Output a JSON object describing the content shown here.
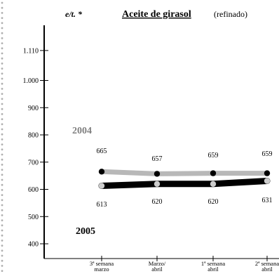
{
  "unit_label": "e/t. *",
  "title": "Aceite de girasol",
  "subtitle": "(refinado)",
  "chart_data": {
    "type": "line",
    "categories": [
      "3ª semana marzo",
      "Marzo/ abril",
      "1ª semana abril",
      "2ª semana abril"
    ],
    "category_lines": [
      [
        "3ª semana",
        "marzo"
      ],
      [
        "Marzo/",
        "abril"
      ],
      [
        "1ª semana",
        "abril"
      ],
      [
        "2ª semana",
        "abril"
      ]
    ],
    "yticks": [
      400,
      500,
      600,
      700,
      800,
      900,
      1000,
      1110
    ],
    "ytick_labels": [
      "400",
      "500",
      "600",
      "700",
      "800",
      "900",
      "1.000",
      "1.110"
    ],
    "ylim": [
      370,
      1200
    ],
    "series": [
      {
        "name": "2004",
        "values": [
          665,
          657,
          659,
          659
        ],
        "line_color": "#b8b8b8",
        "marker_color": "#000000"
      },
      {
        "name": "2005",
        "values": [
          613,
          620,
          620,
          631
        ],
        "line_color": "#000000",
        "marker_color": "#cccccc"
      }
    ]
  }
}
